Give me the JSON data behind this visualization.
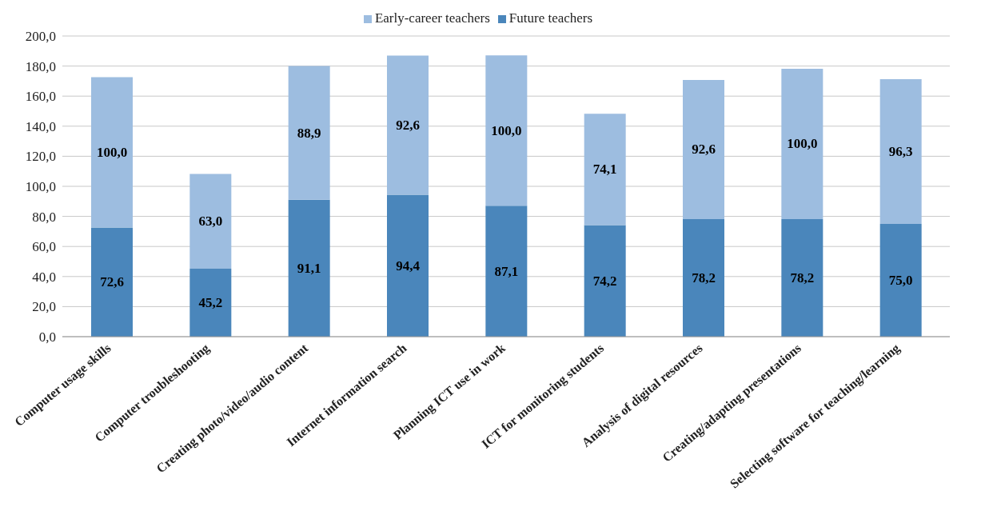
{
  "chart_data": {
    "type": "bar",
    "stacked": true,
    "categories": [
      "Computer usage skills",
      "Computer troubleshooting",
      "Creating photo/video/audio content",
      "Internet information search",
      "Planning ICT use in work",
      "ICT for monitoring students",
      "Analysis of digital resources",
      "Creating/adapting presentations",
      "Selecting software for teaching/learning"
    ],
    "series": [
      {
        "name": "Future teachers",
        "color": "#4a86bb",
        "values": [
          72.6,
          45.2,
          91.1,
          94.4,
          87.1,
          74.2,
          78.2,
          78.2,
          75.0
        ],
        "value_labels": [
          "72,6",
          "45,2",
          "91,1",
          "94,4",
          "87,1",
          "74,2",
          "78,2",
          "78,2",
          "75,0"
        ]
      },
      {
        "name": "Early-career teachers",
        "color": "#9dbde0",
        "values": [
          100.0,
          63.0,
          88.9,
          92.6,
          100.0,
          74.1,
          92.6,
          100.0,
          96.3
        ],
        "value_labels": [
          "100,0",
          "63,0",
          "88,9",
          "92,6",
          "100,0",
          "74,1",
          "92,6",
          "100,0",
          "96,3"
        ]
      }
    ],
    "ylim": [
      0,
      200
    ],
    "yticks": [
      {
        "value": 0,
        "label": "0,0"
      },
      {
        "value": 20,
        "label": "20,0"
      },
      {
        "value": 40,
        "label": "40,0"
      },
      {
        "value": 60,
        "label": "60,0"
      },
      {
        "value": 80,
        "label": "80,0"
      },
      {
        "value": 100,
        "label": "100,0"
      },
      {
        "value": 120,
        "label": "120,0"
      },
      {
        "value": 140,
        "label": "140,0"
      },
      {
        "value": 160,
        "label": "160,0"
      },
      {
        "value": 180,
        "label": "180,0"
      },
      {
        "value": 200,
        "label": "200,0"
      }
    ],
    "grid": "y",
    "legend": "top"
  }
}
